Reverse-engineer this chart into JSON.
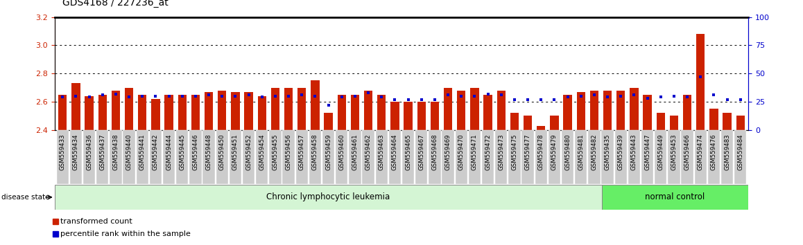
{
  "title": "GDS4168 / 227236_at",
  "samples": [
    "GSM559433",
    "GSM559434",
    "GSM559436",
    "GSM559437",
    "GSM559438",
    "GSM559440",
    "GSM559441",
    "GSM559442",
    "GSM559444",
    "GSM559445",
    "GSM559446",
    "GSM559448",
    "GSM559450",
    "GSM559451",
    "GSM559452",
    "GSM559454",
    "GSM559455",
    "GSM559456",
    "GSM559457",
    "GSM559458",
    "GSM559459",
    "GSM559460",
    "GSM559461",
    "GSM559462",
    "GSM559463",
    "GSM559464",
    "GSM559465",
    "GSM559467",
    "GSM559468",
    "GSM559469",
    "GSM559470",
    "GSM559471",
    "GSM559472",
    "GSM559473",
    "GSM559475",
    "GSM559477",
    "GSM559478",
    "GSM559479",
    "GSM559480",
    "GSM559481",
    "GSM559482",
    "GSM559435",
    "GSM559439",
    "GSM559443",
    "GSM559447",
    "GSM559449",
    "GSM559453",
    "GSM559466",
    "GSM559474",
    "GSM559476",
    "GSM559483",
    "GSM559484"
  ],
  "transformed_count": [
    2.65,
    2.73,
    2.64,
    2.65,
    2.68,
    2.7,
    2.65,
    2.62,
    2.65,
    2.65,
    2.65,
    2.67,
    2.68,
    2.67,
    2.67,
    2.64,
    2.7,
    2.7,
    2.7,
    2.75,
    2.52,
    2.65,
    2.65,
    2.68,
    2.65,
    2.6,
    2.6,
    2.6,
    2.6,
    2.7,
    2.68,
    2.7,
    2.65,
    2.68,
    2.52,
    2.5,
    2.43,
    2.5,
    2.65,
    2.67,
    2.68,
    2.68,
    2.68,
    2.7,
    2.65,
    2.52,
    2.5,
    2.65,
    3.08,
    2.55,
    2.52,
    2.5
  ],
  "percentile_rank": [
    29,
    30,
    29,
    31,
    32,
    29,
    30,
    30,
    30,
    30,
    30,
    31,
    30,
    30,
    31,
    29,
    30,
    30,
    31,
    30,
    22,
    29,
    30,
    33,
    29,
    27,
    27,
    27,
    27,
    31,
    30,
    30,
    32,
    31,
    27,
    27,
    27,
    27,
    29,
    30,
    31,
    29,
    30,
    31,
    28,
    29,
    30,
    29,
    47,
    31,
    27,
    27
  ],
  "group_labels": [
    "Chronic lymphocytic leukemia",
    "normal control"
  ],
  "group_sizes": [
    41,
    11
  ],
  "group_colors": [
    "#d4f5d4",
    "#66ee66"
  ],
  "bar_color": "#cc2200",
  "percentile_color": "#0000cc",
  "ylim_left": [
    2.4,
    3.2
  ],
  "ylim_right": [
    0,
    100
  ],
  "yticks_left": [
    2.4,
    2.6,
    2.8,
    3.0,
    3.2
  ],
  "yticks_right": [
    0,
    25,
    50,
    75,
    100
  ],
  "left_tick_color": "#cc2200",
  "right_tick_color": "#0000cc",
  "grid_values": [
    2.6,
    2.8,
    3.0
  ],
  "disease_state_label": "disease state",
  "legend_items": [
    "transformed count",
    "percentile rank within the sample"
  ],
  "tick_label_bg": "#cccccc",
  "fig_bg": "#ffffff"
}
